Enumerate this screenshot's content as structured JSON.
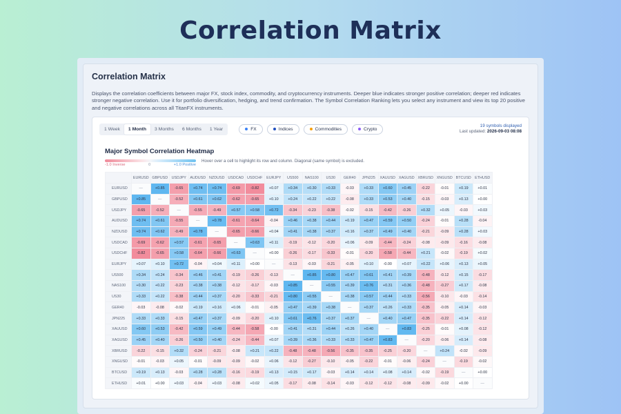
{
  "banner_title": "Correlation Matrix",
  "panel": {
    "title": "Correlation Matrix",
    "description": "Displays the correlation coefficients between major FX, stock index, commodity, and cryptocurrency instruments. Deeper blue indicates stronger positive correlation; deeper red indicates stronger negative correlation. Use it for portfolio diversification, hedging, and trend confirmation. The Symbol Correlation Ranking lets you select any instrument and view its top 20 positive and negative correlations across all TitanFX instruments."
  },
  "periods": [
    "1 Week",
    "1 Month",
    "3 Months",
    "6 Months",
    "1 Year"
  ],
  "active_period": "1 Month",
  "filters": [
    {
      "label": "FX",
      "color": "#3b82f6"
    },
    {
      "label": "Indices",
      "color": "#1f4fbf"
    },
    {
      "label": "Commodities",
      "color": "#f59e0b"
    },
    {
      "label": "Crypto",
      "color": "#8b5cf6"
    }
  ],
  "status": {
    "count_text": "19 symbols displayed",
    "updated_label": "Last updated:",
    "updated_value": "2026-09-03 08:08"
  },
  "heatmap": {
    "title": "Major Symbol Correlation Heatmap",
    "legend_neg": "-1.0 Inverse",
    "legend_mid": "0",
    "legend_pos": "+1.0 Positive",
    "hint": "Hover over a cell to highlight its row and column. Diagonal (same symbol) is excluded.",
    "diag_text": "—",
    "colors": {
      "pos": "#4aaeee",
      "neg": "#f07a8c",
      "neutral": "#ffffff"
    }
  },
  "matrix": {
    "symbols": [
      "EURUSD",
      "GBPUSD",
      "USDJPY",
      "AUDUSD",
      "NZDUSD",
      "USDCAD",
      "USDCHF",
      "EURJPY",
      "US500",
      "NAS100",
      "US30",
      "GER40",
      "JPN225",
      "XAUUSD",
      "XAGUSD",
      "XBRUSD",
      "XNGUSD",
      "BTCUSD",
      "ETHUSD"
    ],
    "rows": [
      [
        "—",
        "+0.85",
        "-0.65",
        "+0.74",
        "+0.74",
        "-0.69",
        "-0.82",
        "+0.07",
        "+0.34",
        "+0.30",
        "+0.33",
        "-0.03",
        "+0.33",
        "+0.60",
        "+0.45",
        "-0.22",
        "-0.01",
        "+0.19",
        "+0.01"
      ],
      [
        "+0.85",
        "—",
        "-0.52",
        "+0.61",
        "+0.62",
        "-0.62",
        "-0.65",
        "+0.10",
        "+0.24",
        "+0.22",
        "+0.22",
        "-0.08",
        "+0.33",
        "+0.53",
        "+0.40",
        "-0.15",
        "-0.03",
        "+0.13",
        "+0.00"
      ],
      [
        "-0.65",
        "-0.52",
        "—",
        "-0.55",
        "-0.49",
        "+0.57",
        "+0.58",
        "+0.72",
        "-0.34",
        "-0.23",
        "-0.38",
        "-0.02",
        "-0.15",
        "-0.42",
        "-0.26",
        "+0.32",
        "+0.05",
        "-0.03",
        "+0.03"
      ],
      [
        "+0.74",
        "+0.61",
        "-0.55",
        "—",
        "+0.78",
        "-0.61",
        "-0.64",
        "-0.04",
        "+0.46",
        "+0.38",
        "+0.44",
        "+0.19",
        "+0.47",
        "+0.59",
        "+0.50",
        "-0.24",
        "-0.01",
        "+0.28",
        "-0.04"
      ],
      [
        "+0.74",
        "+0.62",
        "-0.49",
        "+0.78",
        "—",
        "-0.65",
        "-0.66",
        "+0.04",
        "+0.41",
        "+0.38",
        "+0.37",
        "+0.16",
        "+0.37",
        "+0.49",
        "+0.40",
        "-0.21",
        "-0.09",
        "+0.28",
        "+0.03"
      ],
      [
        "-0.69",
        "-0.62",
        "+0.57",
        "-0.61",
        "-0.65",
        "—",
        "+0.63",
        "+0.11",
        "-0.19",
        "-0.12",
        "-0.20",
        "+0.06",
        "-0.09",
        "-0.44",
        "-0.24",
        "-0.08",
        "-0.09",
        "-0.16",
        "-0.08"
      ],
      [
        "-0.82",
        "-0.65",
        "+0.58",
        "-0.64",
        "-0.66",
        "+0.63",
        "—",
        "+0.00",
        "-0.26",
        "-0.17",
        "-0.33",
        "-0.01",
        "-0.20",
        "-0.58",
        "-0.44",
        "+0.21",
        "-0.02",
        "-0.19",
        "+0.02"
      ],
      [
        "+0.07",
        "+0.10",
        "+0.72",
        "-0.04",
        "+0.04",
        "+0.11",
        "+0.00",
        "—",
        "-0.13",
        "-0.03",
        "-0.21",
        "-0.05",
        "+0.10",
        "-0.00",
        "+0.07",
        "+0.22",
        "+0.06",
        "+0.13",
        "+0.05"
      ],
      [
        "+0.34",
        "+0.24",
        "-0.34",
        "+0.46",
        "+0.41",
        "-0.19",
        "-0.26",
        "-0.13",
        "—",
        "+0.85",
        "+0.80",
        "+0.47",
        "+0.61",
        "+0.41",
        "+0.39",
        "-0.48",
        "-0.12",
        "+0.15",
        "-0.17"
      ],
      [
        "+0.30",
        "+0.22",
        "-0.23",
        "+0.38",
        "+0.38",
        "-0.12",
        "-0.17",
        "-0.03",
        "+0.85",
        "—",
        "+0.55",
        "+0.39",
        "+0.76",
        "+0.31",
        "+0.36",
        "-0.48",
        "-0.27",
        "+0.17",
        "-0.08"
      ],
      [
        "+0.33",
        "+0.22",
        "-0.38",
        "+0.44",
        "+0.37",
        "-0.20",
        "-0.33",
        "-0.21",
        "+0.80",
        "+0.55",
        "—",
        "+0.38",
        "+0.57",
        "+0.44",
        "+0.33",
        "-0.56",
        "-0.10",
        "-0.03",
        "-0.14"
      ],
      [
        "-0.03",
        "-0.08",
        "-0.02",
        "+0.19",
        "+0.16",
        "+0.06",
        "-0.01",
        "-0.05",
        "+0.47",
        "+0.39",
        "+0.38",
        "—",
        "+0.37",
        "+0.26",
        "+0.33",
        "-0.35",
        "-0.05",
        "+0.14",
        "-0.03"
      ],
      [
        "+0.33",
        "+0.33",
        "-0.15",
        "+0.47",
        "+0.37",
        "-0.09",
        "-0.20",
        "+0.10",
        "+0.61",
        "+0.76",
        "+0.37",
        "+0.37",
        "—",
        "+0.40",
        "+0.47",
        "-0.35",
        "-0.22",
        "+0.14",
        "-0.12"
      ],
      [
        "+0.60",
        "+0.53",
        "-0.42",
        "+0.59",
        "+0.49",
        "-0.44",
        "-0.58",
        "-0.00",
        "+0.41",
        "+0.31",
        "+0.44",
        "+0.26",
        "+0.40",
        "—",
        "+0.83",
        "-0.25",
        "-0.01",
        "+0.08",
        "-0.12"
      ],
      [
        "+0.45",
        "+0.40",
        "-0.26",
        "+0.50",
        "+0.40",
        "-0.24",
        "-0.44",
        "+0.07",
        "+0.39",
        "+0.36",
        "+0.33",
        "+0.33",
        "+0.47",
        "+0.83",
        "—",
        "-0.20",
        "-0.06",
        "+0.14",
        "-0.08"
      ],
      [
        "-0.22",
        "-0.15",
        "+0.32",
        "-0.24",
        "-0.21",
        "-0.08",
        "+0.21",
        "+0.22",
        "-0.48",
        "-0.48",
        "-0.56",
        "-0.35",
        "-0.35",
        "-0.25",
        "-0.20",
        "—",
        "+0.24",
        "-0.02",
        "-0.09"
      ],
      [
        "-0.01",
        "-0.03",
        "+0.05",
        "-0.01",
        "-0.09",
        "-0.09",
        "-0.02",
        "+0.06",
        "-0.12",
        "-0.27",
        "-0.10",
        "-0.05",
        "-0.22",
        "-0.01",
        "-0.06",
        "-0.24",
        "—",
        "-0.19",
        "-0.02"
      ],
      [
        "+0.19",
        "+0.13",
        "-0.03",
        "+0.28",
        "+0.28",
        "-0.16",
        "-0.19",
        "+0.13",
        "+0.15",
        "+0.17",
        "-0.03",
        "+0.14",
        "+0.14",
        "+0.08",
        "+0.14",
        "-0.02",
        "-0.19",
        "—",
        "+0.00"
      ],
      [
        "+0.01",
        "+0.00",
        "+0.03",
        "-0.04",
        "+0.03",
        "-0.08",
        "+0.02",
        "+0.05",
        "-0.17",
        "-0.08",
        "-0.14",
        "-0.03",
        "-0.12",
        "-0.12",
        "-0.08",
        "-0.09",
        "-0.02",
        "+0.00",
        "—"
      ]
    ]
  }
}
